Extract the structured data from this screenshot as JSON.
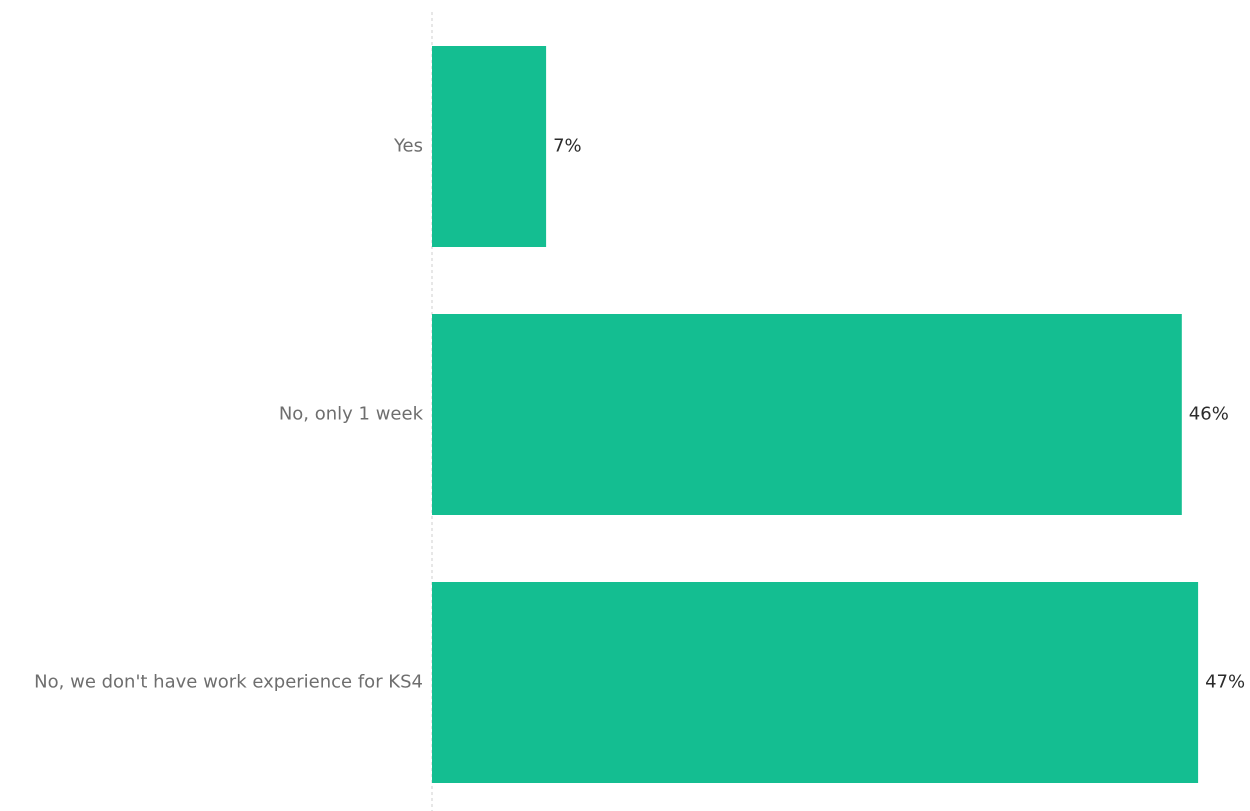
{
  "chart_data": {
    "type": "bar",
    "orientation": "horizontal",
    "categories": [
      "Yes",
      "No, only 1 week",
      "No, we don't have work experience for KS4"
    ],
    "values": [
      7,
      46,
      47
    ],
    "value_labels": [
      "7%",
      "46%",
      "47%"
    ],
    "unit": "%",
    "title": "",
    "xlabel": "",
    "ylabel": "",
    "xlim": [
      0,
      47
    ],
    "grid": false,
    "legend": "none",
    "bar_color": "#14be91"
  }
}
